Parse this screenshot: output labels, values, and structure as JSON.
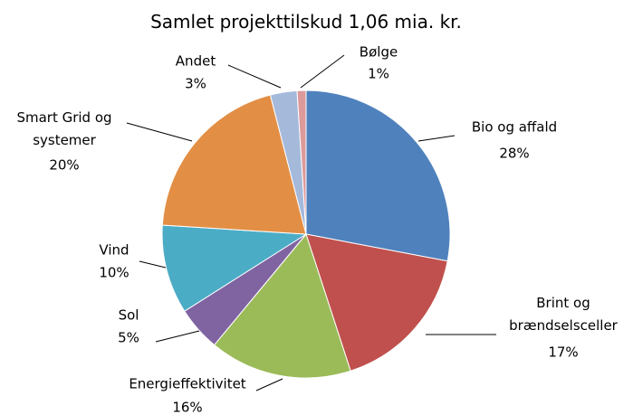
{
  "chart_data": {
    "type": "pie",
    "title": "Samlet projekttilskud 1,06 mia. kr.",
    "categories": [
      "Bio og affald",
      "Brint og\nbrændselsceller",
      "Energieffektivitet",
      "Sol",
      "Vind",
      "Smart Grid og\nsystemer",
      "Andet",
      "Bølge"
    ],
    "values": [
      28,
      17,
      16,
      5,
      10,
      20,
      3,
      1
    ],
    "value_labels": [
      "28%",
      "17%",
      "16%",
      "5%",
      "10%",
      "20%",
      "3%",
      "1%"
    ],
    "colors": [
      "#4f81bd",
      "#c0504d",
      "#9bbb59",
      "#8064a2",
      "#4bacc6",
      "#e28f45",
      "#a5b9db",
      "#dc9a9a"
    ]
  }
}
